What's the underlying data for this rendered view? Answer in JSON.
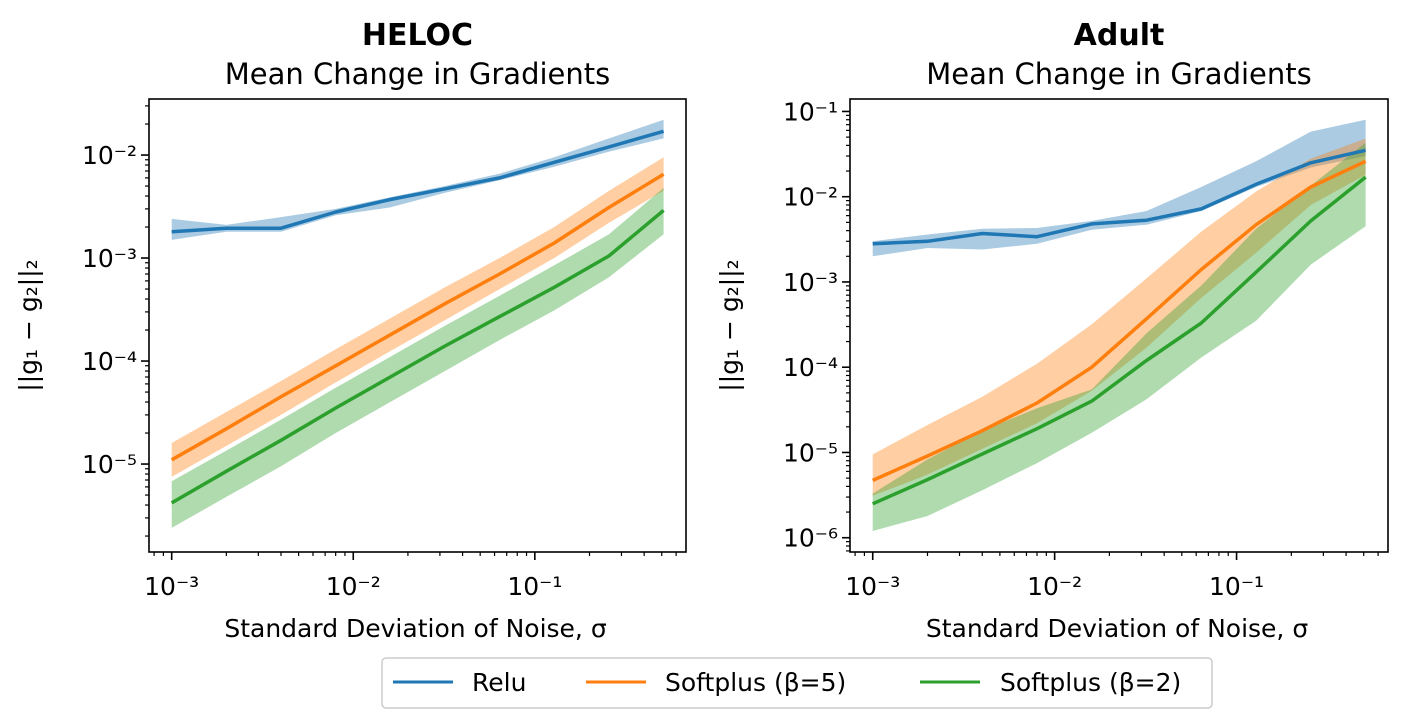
{
  "chart_data": [
    {
      "type": "line",
      "title": "HELOC",
      "subtitle": "Mean Change in Gradients",
      "xlabel": "Standard Deviation of Noise, σ",
      "ylabel": "||g1 − g2||2",
      "xscale": "log",
      "yscale": "log",
      "xlim": [
        0.00075,
        0.68
      ],
      "ylim": [
        1.4e-06,
        0.035
      ],
      "xtick_values": [
        0.001,
        0.01,
        0.1
      ],
      "xtick_labels": [
        "10−3",
        "10−2",
        "10−1"
      ],
      "ytick_values": [
        1e-05,
        0.0001,
        0.001,
        0.01
      ],
      "ytick_labels": [
        "10−5",
        "10−4",
        "10−3",
        "10−2"
      ],
      "grid": false,
      "x": [
        0.001,
        0.002,
        0.004,
        0.008,
        0.016,
        0.032,
        0.064,
        0.128,
        0.256,
        0.512
      ],
      "series": [
        {
          "name": "Relu",
          "color": "#1f77b4",
          "values": [
            0.0018,
            0.00195,
            0.00195,
            0.0028,
            0.0037,
            0.0047,
            0.006,
            0.0085,
            0.012,
            0.017
          ],
          "lower": [
            0.0015,
            0.0018,
            0.0018,
            0.0026,
            0.0031,
            0.0043,
            0.0057,
            0.0077,
            0.0108,
            0.0145
          ],
          "upper": [
            0.0024,
            0.0021,
            0.0025,
            0.003,
            0.0039,
            0.005,
            0.0066,
            0.0095,
            0.0145,
            0.022
          ]
        },
        {
          "name": "Softplus (β=5)",
          "color": "#ff7f0e",
          "values": [
            1.1e-05,
            2.2e-05,
            4.5e-05,
            9e-05,
            0.00018,
            0.00036,
            0.0007,
            0.0014,
            0.0031,
            0.0065
          ],
          "lower": [
            7.5e-06,
            1.5e-05,
            3e-05,
            6.2e-05,
            0.000125,
            0.00025,
            0.0005,
            0.001,
            0.0022,
            0.0045
          ],
          "upper": [
            1.6e-05,
            3.2e-05,
            6.4e-05,
            0.00013,
            0.00026,
            0.00052,
            0.001,
            0.002,
            0.0045,
            0.0095
          ]
        },
        {
          "name": "Softplus (β=2)",
          "color": "#2ca02c",
          "values": [
            4.2e-06,
            8.5e-06,
            1.7e-05,
            3.5e-05,
            7e-05,
            0.00014,
            0.00027,
            0.00052,
            0.00105,
            0.0029
          ],
          "lower": [
            2.4e-06,
            4.8e-06,
            9.5e-06,
            2e-05,
            4e-05,
            8e-05,
            0.00016,
            0.00031,
            0.00065,
            0.0017
          ],
          "upper": [
            6.8e-06,
            1.35e-05,
            2.7e-05,
            5.5e-05,
            0.00011,
            0.00022,
            0.00043,
            0.00085,
            0.0017,
            0.0048
          ]
        }
      ]
    },
    {
      "type": "line",
      "title": "Adult",
      "subtitle": "Mean Change in Gradients",
      "xlabel": "Standard Deviation of Noise, σ",
      "ylabel": "||g1 − g2||2",
      "xscale": "log",
      "yscale": "log",
      "xlim": [
        0.00075,
        0.68
      ],
      "ylim": [
        6.8e-07,
        0.14
      ],
      "xtick_values": [
        0.001,
        0.01,
        0.1
      ],
      "xtick_labels": [
        "10−3",
        "10−2",
        "10−1"
      ],
      "ytick_values": [
        1e-06,
        1e-05,
        0.0001,
        0.001,
        0.01,
        0.1
      ],
      "ytick_labels": [
        "10−6",
        "10−5",
        "10−4",
        "10−3",
        "10−2",
        "10−1"
      ],
      "grid": false,
      "x": [
        0.001,
        0.002,
        0.004,
        0.008,
        0.016,
        0.032,
        0.064,
        0.128,
        0.256,
        0.512
      ],
      "series": [
        {
          "name": "Relu",
          "color": "#1f77b4",
          "values": [
            0.0028,
            0.003,
            0.0037,
            0.0034,
            0.0048,
            0.0053,
            0.0072,
            0.014,
            0.025,
            0.035
          ],
          "lower": [
            0.002,
            0.0025,
            0.0024,
            0.0028,
            0.0041,
            0.0047,
            0.0068,
            0.013,
            0.022,
            0.03
          ],
          "upper": [
            0.003,
            0.0036,
            0.0042,
            0.0043,
            0.0052,
            0.0068,
            0.013,
            0.026,
            0.058,
            0.08
          ]
        },
        {
          "name": "Softplus (β=5)",
          "color": "#ff7f0e",
          "values": [
            4.7e-06,
            9.1e-06,
            1.8e-05,
            3.8e-05,
            0.0001,
            0.00037,
            0.0014,
            0.0047,
            0.013,
            0.026
          ],
          "lower": [
            3.1e-06,
            5.5e-06,
            1.1e-05,
            2.2e-05,
            5.3e-05,
            0.00017,
            0.00065,
            0.0022,
            0.008,
            0.018
          ],
          "upper": [
            9.5e-06,
            2.1e-05,
            4.5e-05,
            0.00011,
            0.00032,
            0.0011,
            0.0039,
            0.0115,
            0.028,
            0.048
          ]
        },
        {
          "name": "Softplus (β=2)",
          "color": "#2ca02c",
          "values": [
            2.5e-06,
            4.8e-06,
            9.6e-06,
            1.9e-05,
            4e-05,
            0.00012,
            0.00033,
            0.0013,
            0.0052,
            0.017
          ],
          "lower": [
            1.2e-06,
            1.8e-06,
            3.6e-06,
            7.5e-06,
            1.7e-05,
            4.2e-05,
            0.00013,
            0.00035,
            0.0016,
            0.0045
          ],
          "upper": [
            3.3e-06,
            8.3e-06,
            1.8e-05,
            3.3e-05,
            5.5e-05,
            0.00025,
            0.00091,
            0.0042,
            0.0135,
            0.043
          ]
        }
      ]
    }
  ],
  "legend": {
    "placement": "bottom-center",
    "entries": [
      {
        "label": "Relu",
        "color": "#1f77b4"
      },
      {
        "label": "Softplus (β=5)",
        "color": "#ff7f0e"
      },
      {
        "label": "Softplus (β=2)",
        "color": "#2ca02c"
      }
    ]
  }
}
